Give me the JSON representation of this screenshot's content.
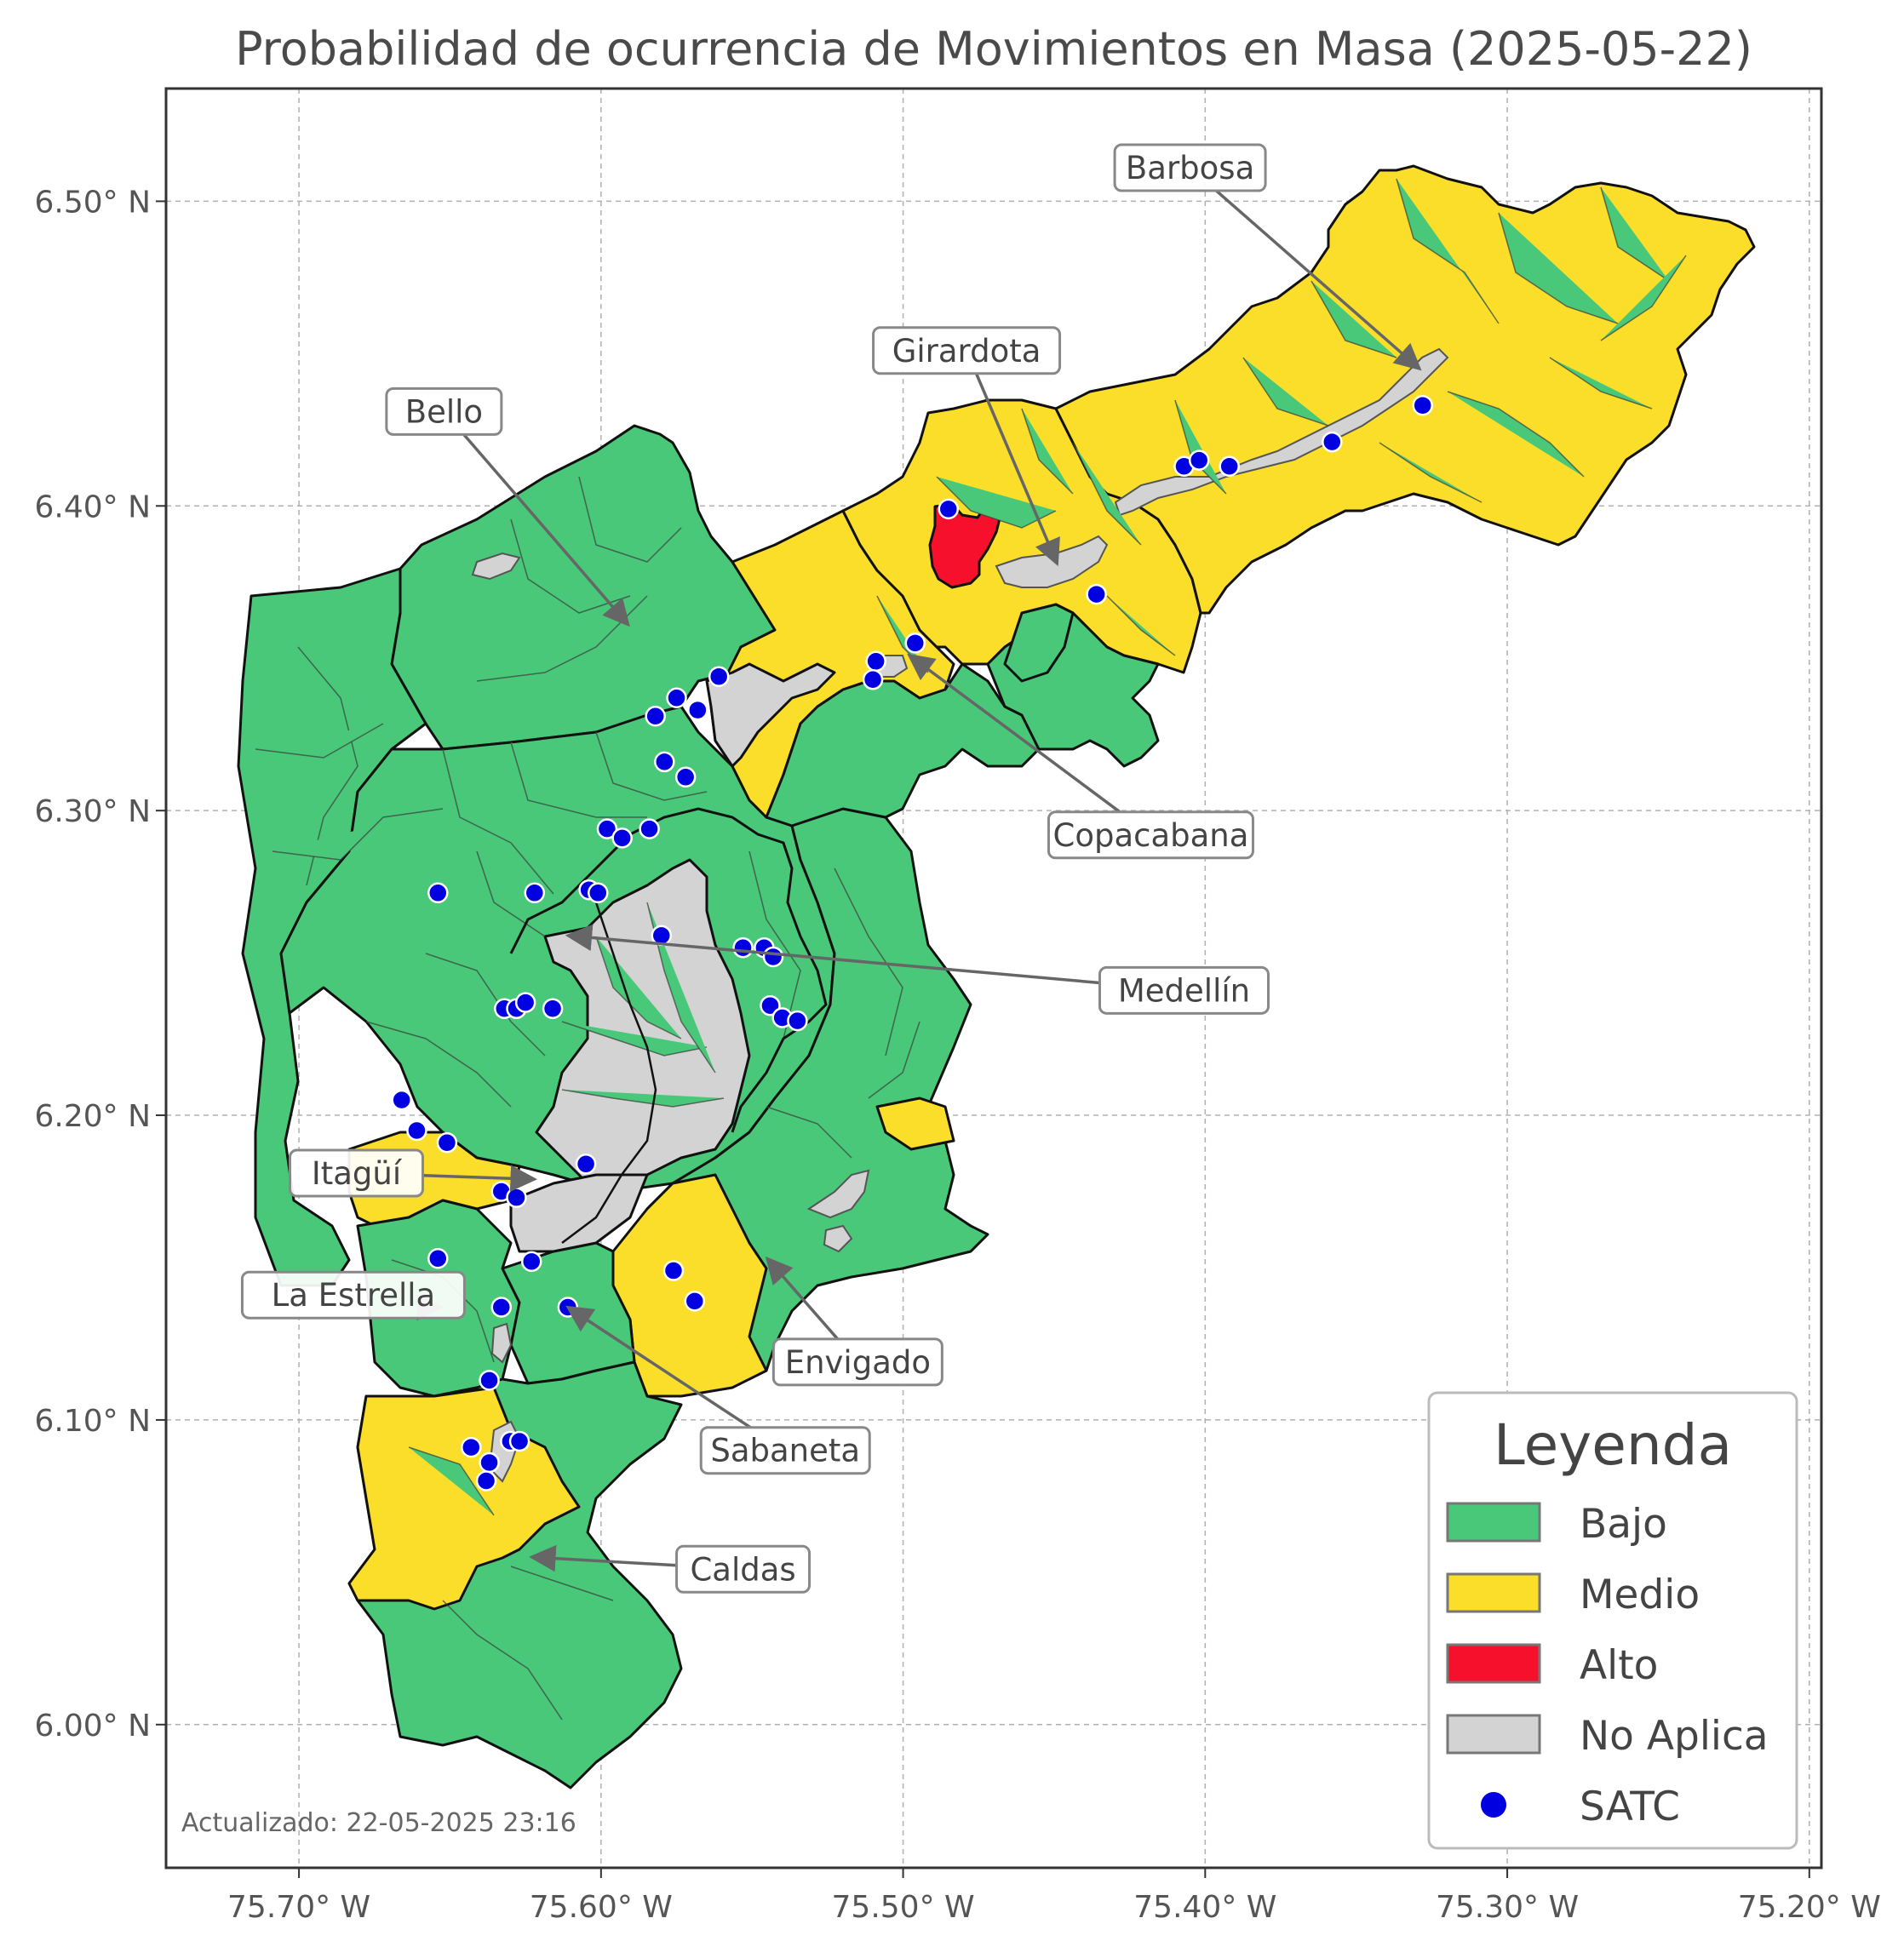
{
  "title": "Probabilidad de ocurrencia de Movimientos en Masa (2025-05-22)",
  "updated": "Actualizado: 22-05-2025 23:16",
  "colors": {
    "bajo": "#48c878",
    "medio": "#fbde2a",
    "alto": "#f7102c",
    "no_aplica": "#d3d3d3",
    "satc": "#0000e0",
    "arrow": "#666666"
  },
  "axes": {
    "x_ticks": [
      "75.70° W",
      "75.60° W",
      "75.50° W",
      "75.40° W",
      "75.30° W",
      "75.20° W"
    ],
    "y_ticks": [
      "6.50° N",
      "6.40° N",
      "6.30° N",
      "6.20° N",
      "6.10° N",
      "6.00° N"
    ],
    "x_values": [
      -75.7,
      -75.6,
      -75.5,
      -75.4,
      -75.3,
      -75.2
    ],
    "y_values": [
      6.5,
      6.4,
      6.3,
      6.2,
      6.1,
      6.0
    ],
    "xlim": [
      -75.744,
      -75.196
    ],
    "ylim": [
      5.953,
      6.537
    ],
    "grid": true
  },
  "municipalities": [
    {
      "name": "Barbosa",
      "level": "medio"
    },
    {
      "name": "Girardota",
      "level": "medio"
    },
    {
      "name": "Bello",
      "level": "bajo"
    },
    {
      "name": "Copacabana",
      "level": "medio"
    },
    {
      "name": "Medellín",
      "level": "bajo"
    },
    {
      "name": "Itagüí",
      "level": "medio"
    },
    {
      "name": "La Estrella",
      "level": "bajo"
    },
    {
      "name": "Envigado",
      "level": "medio"
    },
    {
      "name": "Sabaneta",
      "level": "bajo"
    },
    {
      "name": "Caldas",
      "level": "medio"
    }
  ],
  "callouts": [
    {
      "label": "Barbosa",
      "label_lon": -75.405,
      "label_lat": 6.511,
      "point_lon": -75.329,
      "point_lat": 6.445
    },
    {
      "label": "Girardota",
      "label_lon": -75.479,
      "label_lat": 6.451,
      "point_lon": -75.449,
      "point_lat": 6.381
    },
    {
      "label": "Bello",
      "label_lon": -75.652,
      "label_lat": 6.431,
      "point_lon": -75.591,
      "point_lat": 6.361
    },
    {
      "label": "Copacabana",
      "label_lon": -75.418,
      "label_lat": 6.292,
      "point_lon": -75.498,
      "point_lat": 6.351
    },
    {
      "label": "Medellín",
      "label_lon": -75.407,
      "label_lat": 6.241,
      "point_lon": -75.611,
      "point_lat": 6.259
    },
    {
      "label": "Itagüí",
      "label_lon": -75.681,
      "label_lat": 6.181,
      "point_lon": -75.622,
      "point_lat": 6.179
    },
    {
      "label": "La Estrella",
      "label_lon": -75.682,
      "label_lat": 6.141,
      "point_lon": -75.653,
      "point_lat": 6.137
    },
    {
      "label": "Envigado",
      "label_lon": -75.515,
      "label_lat": 6.119,
      "point_lon": -75.545,
      "point_lat": 6.153
    },
    {
      "label": "Sabaneta",
      "label_lon": -75.539,
      "label_lat": 6.09,
      "point_lon": -75.611,
      "point_lat": 6.137
    },
    {
      "label": "Caldas",
      "label_lon": -75.553,
      "label_lat": 6.051,
      "point_lon": -75.623,
      "point_lat": 6.055
    }
  ],
  "satc": [
    [
      -75.485,
      6.399
    ],
    [
      -75.328,
      6.433
    ],
    [
      -75.358,
      6.421
    ],
    [
      -75.392,
      6.413
    ],
    [
      -75.407,
      6.413
    ],
    [
      -75.402,
      6.415
    ],
    [
      -75.436,
      6.371
    ],
    [
      -75.496,
      6.355
    ],
    [
      -75.509,
      6.349
    ],
    [
      -75.51,
      6.343
    ],
    [
      -75.561,
      6.344
    ],
    [
      -75.568,
      6.333
    ],
    [
      -75.575,
      6.337
    ],
    [
      -75.582,
      6.331
    ],
    [
      -75.579,
      6.316
    ],
    [
      -75.572,
      6.311
    ],
    [
      -75.598,
      6.294
    ],
    [
      -75.593,
      6.291
    ],
    [
      -75.584,
      6.294
    ],
    [
      -75.654,
      6.273
    ],
    [
      -75.622,
      6.273
    ],
    [
      -75.604,
      6.274
    ],
    [
      -75.601,
      6.273
    ],
    [
      -75.58,
      6.259
    ],
    [
      -75.553,
      6.255
    ],
    [
      -75.546,
      6.255
    ],
    [
      -75.543,
      6.252
    ],
    [
      -75.544,
      6.236
    ],
    [
      -75.54,
      6.232
    ],
    [
      -75.535,
      6.231
    ],
    [
      -75.632,
      6.235
    ],
    [
      -75.628,
      6.235
    ],
    [
      -75.625,
      6.237
    ],
    [
      -75.616,
      6.235
    ],
    [
      -75.666,
      6.205
    ],
    [
      -75.661,
      6.195
    ],
    [
      -75.651,
      6.191
    ],
    [
      -75.605,
      6.184
    ],
    [
      -75.633,
      6.175
    ],
    [
      -75.628,
      6.173
    ],
    [
      -75.654,
      6.153
    ],
    [
      -75.623,
      6.152
    ],
    [
      -75.576,
      6.149
    ],
    [
      -75.569,
      6.139
    ],
    [
      -75.633,
      6.137
    ],
    [
      -75.611,
      6.137
    ],
    [
      -75.637,
      6.113
    ],
    [
      -75.643,
      6.091
    ],
    [
      -75.63,
      6.093
    ],
    [
      -75.627,
      6.093
    ],
    [
      -75.637,
      6.086
    ],
    [
      -75.638,
      6.08
    ]
  ],
  "legend": {
    "title": "Leyenda",
    "items": [
      {
        "label": "Bajo",
        "kind": "patch",
        "color": "#48c878"
      },
      {
        "label": "Medio",
        "kind": "patch",
        "color": "#fbde2a"
      },
      {
        "label": "Alto",
        "kind": "patch",
        "color": "#f7102c"
      },
      {
        "label": "No Aplica",
        "kind": "patch",
        "color": "#d3d3d3"
      },
      {
        "label": "SATC",
        "kind": "dot",
        "color": "#0000e0"
      }
    ]
  }
}
